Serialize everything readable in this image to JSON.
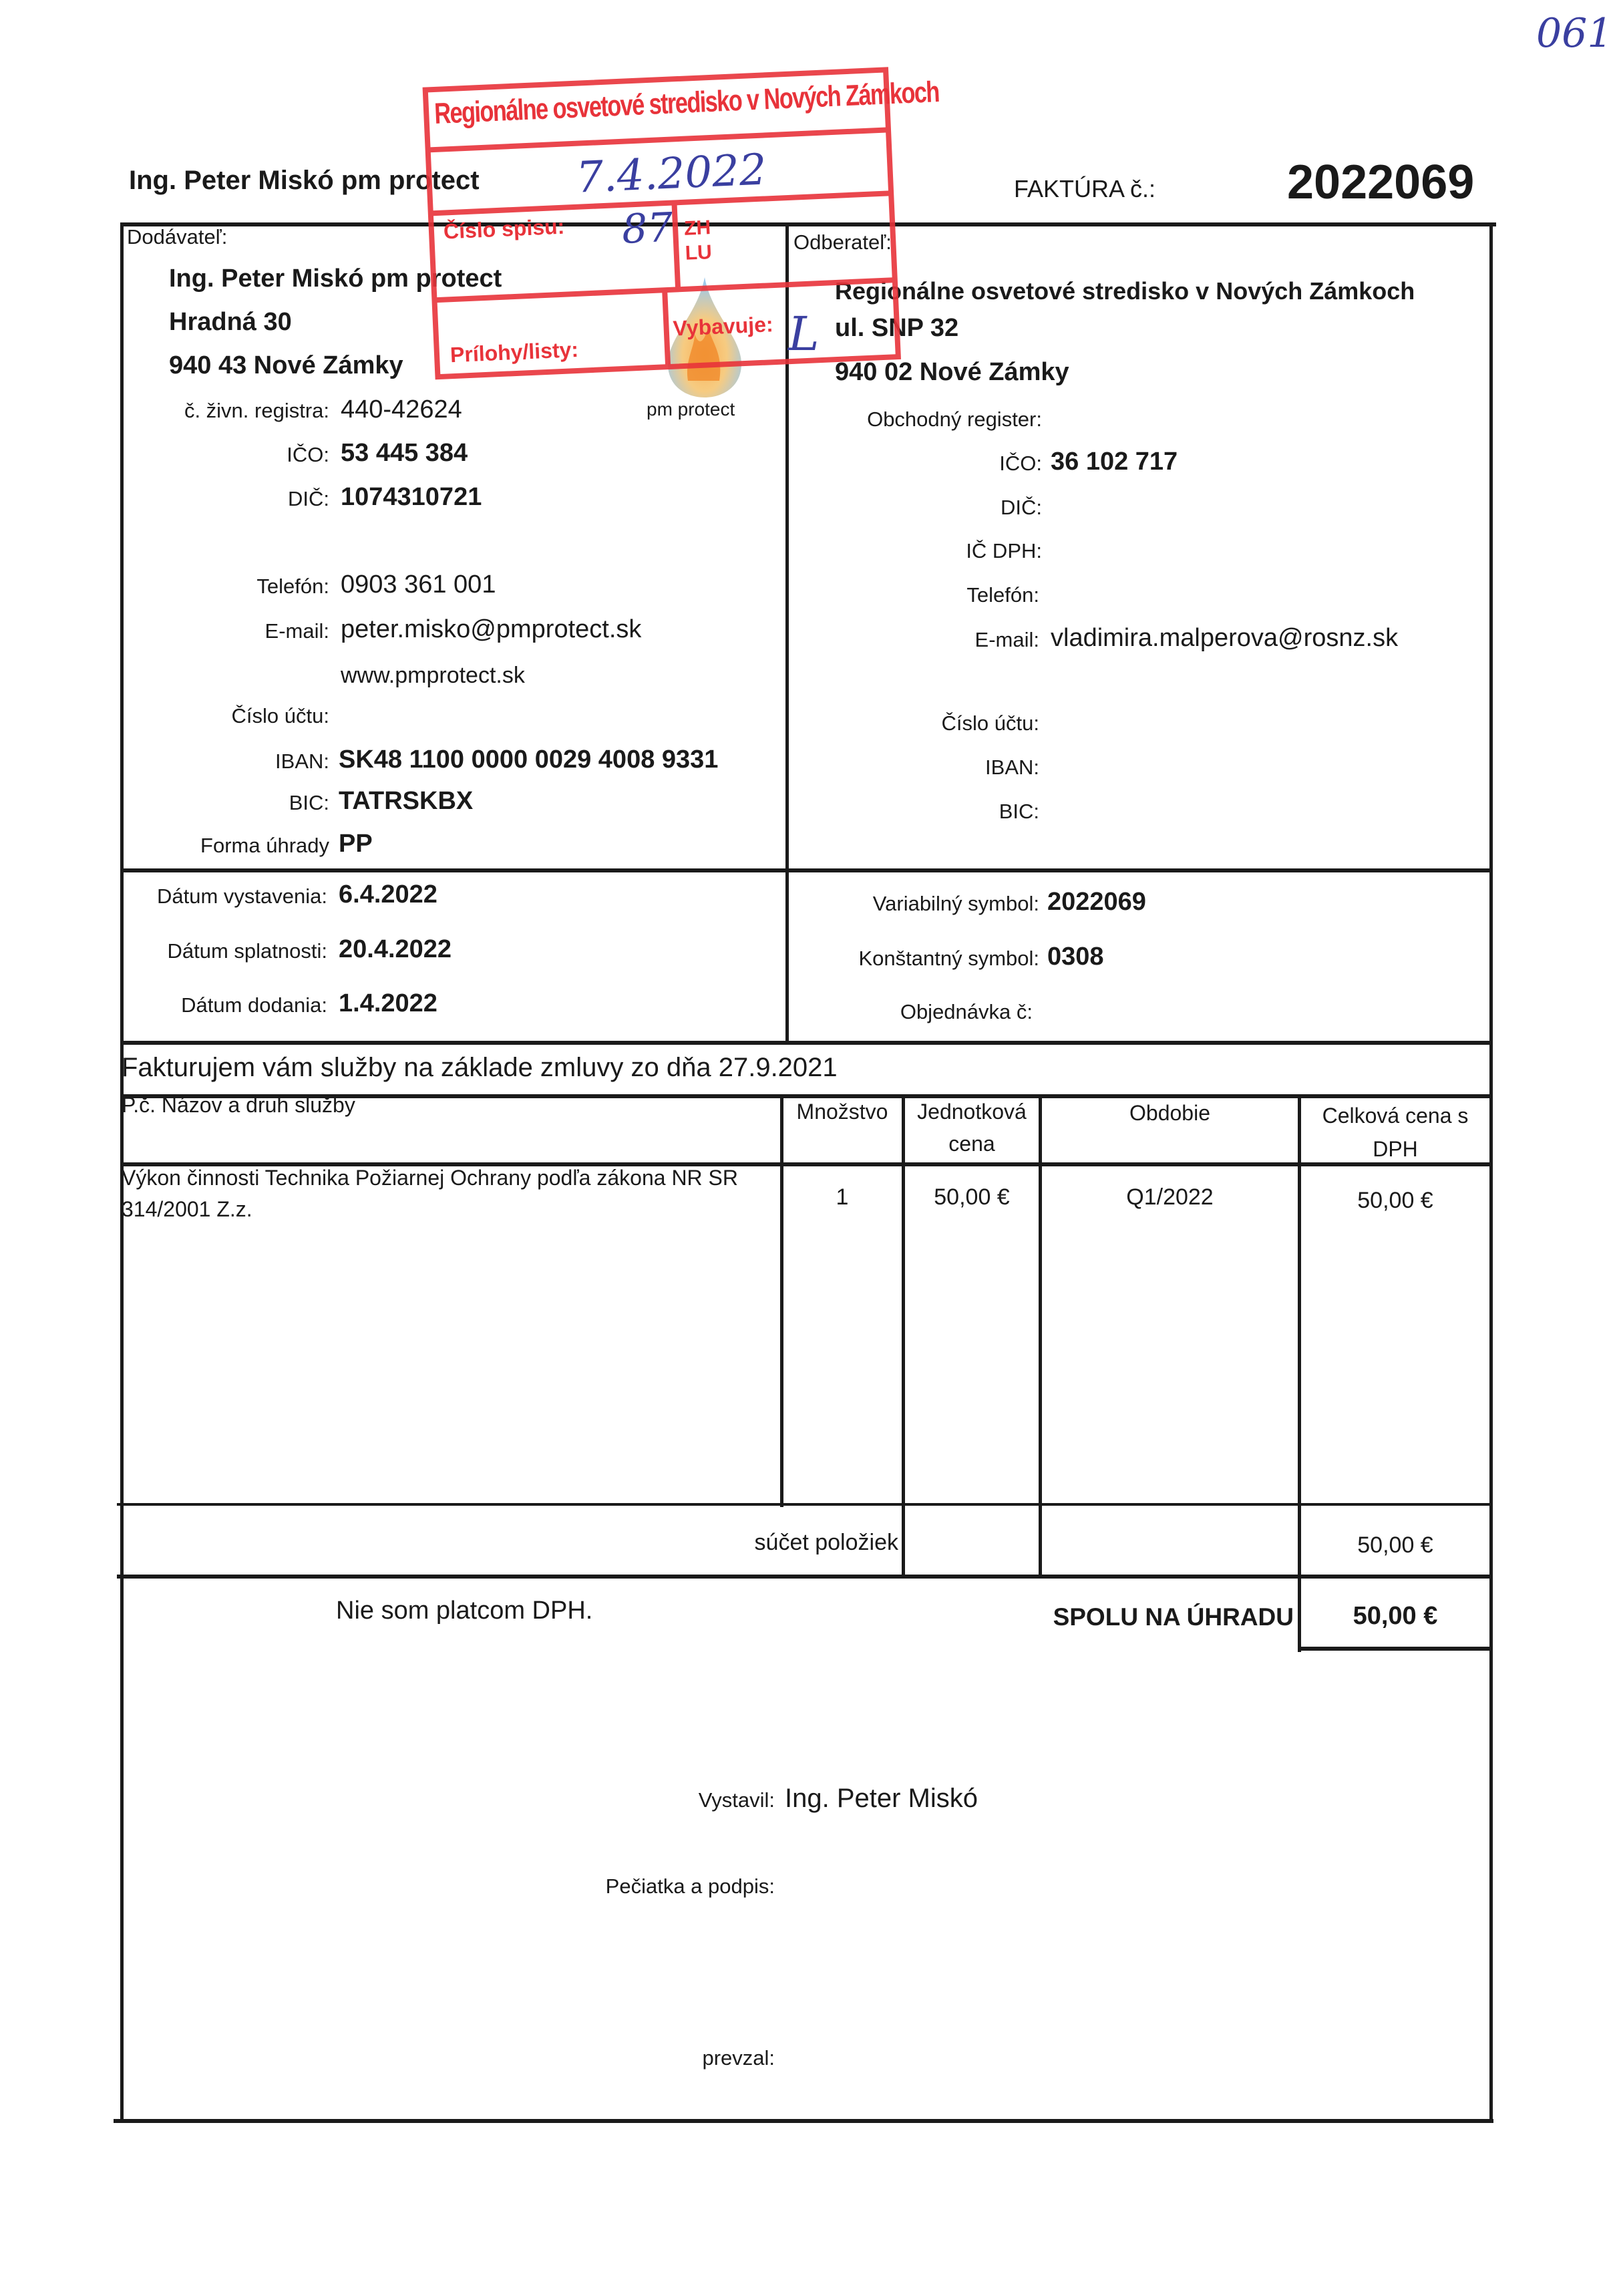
{
  "corner_note": "061",
  "header": {
    "supplier_title": "Ing. Peter Miskó pm protect",
    "invoice_label": "FAKTÚRA č.:",
    "invoice_number": "2022069"
  },
  "supplier": {
    "section_label": "Dodávateľ:",
    "name": "Ing. Peter Miskó pm protect",
    "street": "Hradná 30",
    "city": "940 43 Nové Zámky",
    "trade_register_label": "č. živn. registra:",
    "trade_register": "440-42624",
    "ico_label": "IČO:",
    "ico": "53 445 384",
    "dic_label": "DIČ:",
    "dic": "1074310721",
    "phone_label": "Telefón:",
    "phone": "0903 361 001",
    "email_label": "E-mail:",
    "email": "peter.misko@pmprotect.sk",
    "web": "www.pmprotect.sk",
    "account_label": "Číslo účtu:",
    "iban_label": "IBAN:",
    "iban": "SK48 1100 0000 0029 4008 9331",
    "bic_label": "BIC:",
    "bic": "TATRSKBX",
    "payment_label": "Forma úhrady",
    "payment": "PP",
    "logo_text": "pm protect"
  },
  "customer": {
    "section_label": "Odberateľ:",
    "name": "Regionálne osvetové stredisko v Nových Zámkoch",
    "street": "ul. SNP 32",
    "city": "940 02 Nové Zámky",
    "register_label": "Obchodný register:",
    "ico_label": "IČO:",
    "ico": "36 102 717",
    "dic_label": "DIČ:",
    "icdph_label": "IČ DPH:",
    "phone_label": "Telefón:",
    "email_label": "E-mail:",
    "email": "vladimira.malperova@rosnz.sk",
    "account_label": "Číslo účtu:",
    "iban_label": "IBAN:",
    "bic_label": "BIC:"
  },
  "dates": {
    "issued_label": "Dátum vystavenia:",
    "issued": "6.4.2022",
    "due_label": "Dátum splatnosti:",
    "due": "20.4.2022",
    "delivery_label": "Dátum dodania:",
    "delivery": "1.4.2022"
  },
  "symbols": {
    "variable_label": "Variabilný symbol:",
    "variable": "2022069",
    "constant_label": "Konštantný symbol:",
    "constant": "0308",
    "order_label": "Objednávka č:"
  },
  "intro": "Fakturujem vám služby na základe zmluvy zo dňa 27.9.2021",
  "table": {
    "headers": {
      "name": "P.č.  Názov a druh služby",
      "qty": "Množstvo",
      "unit1": "Jednotková",
      "unit2": "cena",
      "period": "Obdobie",
      "total1": "Celková cena s",
      "total2": "DPH"
    },
    "rows": [
      {
        "name1": "Výkon činnosti Technika Požiarnej Ochrany podľa zákona NR SR",
        "name2": "314/2001 Z.z.",
        "qty": "1",
        "unit_price": "50,00 €",
        "period": "Q1/2022",
        "total": "50,00 €"
      }
    ],
    "sum_label": "súčet položiek",
    "sum": "50,00 €"
  },
  "vat_note": "Nie som platcom DPH.",
  "grand_total_label": "SPOLU NA ÚHRADU",
  "grand_total": "50,00 €",
  "footer": {
    "issued_by_label": "Vystavil:",
    "issued_by": "Ing. Peter Miskó",
    "stamp_label": "Pečiatka a podpis:",
    "received_label": "prevzal:"
  },
  "stamp": {
    "title": "Regionálne osvetové stredisko v Nových Zámkoch",
    "date_handwritten": "7.4.2022",
    "file_label": "Číslo spisu:",
    "file_handwritten": "87",
    "zh": "ZH",
    "lu": "LU",
    "attachments_label": "Prílohy/listy:",
    "handler_label": "Vybavuje:",
    "initial_handwritten": "L",
    "color": "#e8333a"
  },
  "colors": {
    "ink": "#1a1a1a",
    "stamp_red": "#e8333a",
    "handwriting_blue": "#3a3fa0"
  }
}
